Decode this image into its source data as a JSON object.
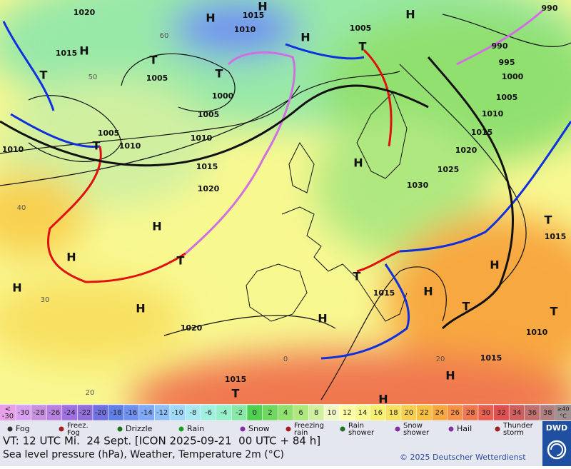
{
  "map": {
    "isobar_labels": [
      "1020",
      "1015",
      "1010",
      "1005",
      "990",
      "990",
      "995",
      "1000",
      "1005",
      "1010",
      "1015",
      "1020",
      "1025",
      "1030",
      "1015",
      "1005",
      "1000",
      "1005",
      "1010",
      "1005",
      "1010",
      "1010",
      "1015",
      "1020",
      "1015",
      "1020",
      "1015",
      "1015",
      "1010",
      "1015"
    ],
    "high_labels": [
      "H",
      "H",
      "H",
      "H",
      "H",
      "H",
      "H",
      "H",
      "H",
      "H",
      "H",
      "H",
      "H",
      "H",
      "H"
    ],
    "low_labels": [
      "T",
      "T",
      "T",
      "T",
      "T",
      "T",
      "T",
      "T",
      "T",
      "T",
      "T"
    ],
    "temp_labels": [
      "60",
      "50",
      "40",
      "30",
      "20",
      "0",
      "20"
    ]
  },
  "scale": {
    "low_cap": [
      "<",
      "-30"
    ],
    "labels": [
      "-30",
      "-28",
      "-26",
      "-24",
      "-22",
      "-20",
      "-18",
      "-16",
      "-14",
      "-12",
      "-10",
      "-8",
      "-6",
      "-4",
      "-2",
      "0",
      "2",
      "4",
      "6",
      "8",
      "10",
      "12",
      "14",
      "16",
      "18",
      "20",
      "22",
      "24",
      "26",
      "28",
      "30",
      "32",
      "34",
      "36",
      "38"
    ],
    "high_cap": [
      "≥40",
      "°C"
    ],
    "colors": [
      "#e8a0e8",
      "#d8a0f0",
      "#c890e0",
      "#b880e0",
      "#a070e0",
      "#9070d8",
      "#7070e0",
      "#6080e8",
      "#7090f0",
      "#80a8f8",
      "#90c0f8",
      "#a0d8f8",
      "#a8e8f0",
      "#a0f0e0",
      "#98f0c8",
      "#88e8a8",
      "#50d050",
      "#70d860",
      "#90e070",
      "#b0e880",
      "#d0f0a0",
      "#f0f8c8",
      "#ffffa8",
      "#f8f890",
      "#f8f070",
      "#f8e060",
      "#f8d050",
      "#f8c040",
      "#f8a840",
      "#f89048",
      "#f07850",
      "#e86050",
      "#e05050",
      "#d06060",
      "#c07070",
      "#b08080",
      "#a09090"
    ]
  },
  "legend": [
    [
      "Fog"
    ],
    [
      "Freez.",
      "Fog"
    ],
    [
      "Drizzle"
    ],
    [
      "Rain"
    ],
    [
      "Snow"
    ],
    [
      "Freezing",
      "rain"
    ],
    [
      "Rain",
      "shower"
    ],
    [
      "Snow",
      "shower"
    ],
    [
      "Hail"
    ],
    [
      "Thunder",
      "storm"
    ]
  ],
  "footer": {
    "valid_time": "VT: 12 UTC Mi.  24 Sept. [ICON 2025-09-21  00 UTC + 84 h]",
    "description": "Sea level pressure (hPa), Weather, Temperature 2m (°C)",
    "copyright": "© 2025 Deutscher Wetterdienst",
    "logo": "DWD"
  }
}
